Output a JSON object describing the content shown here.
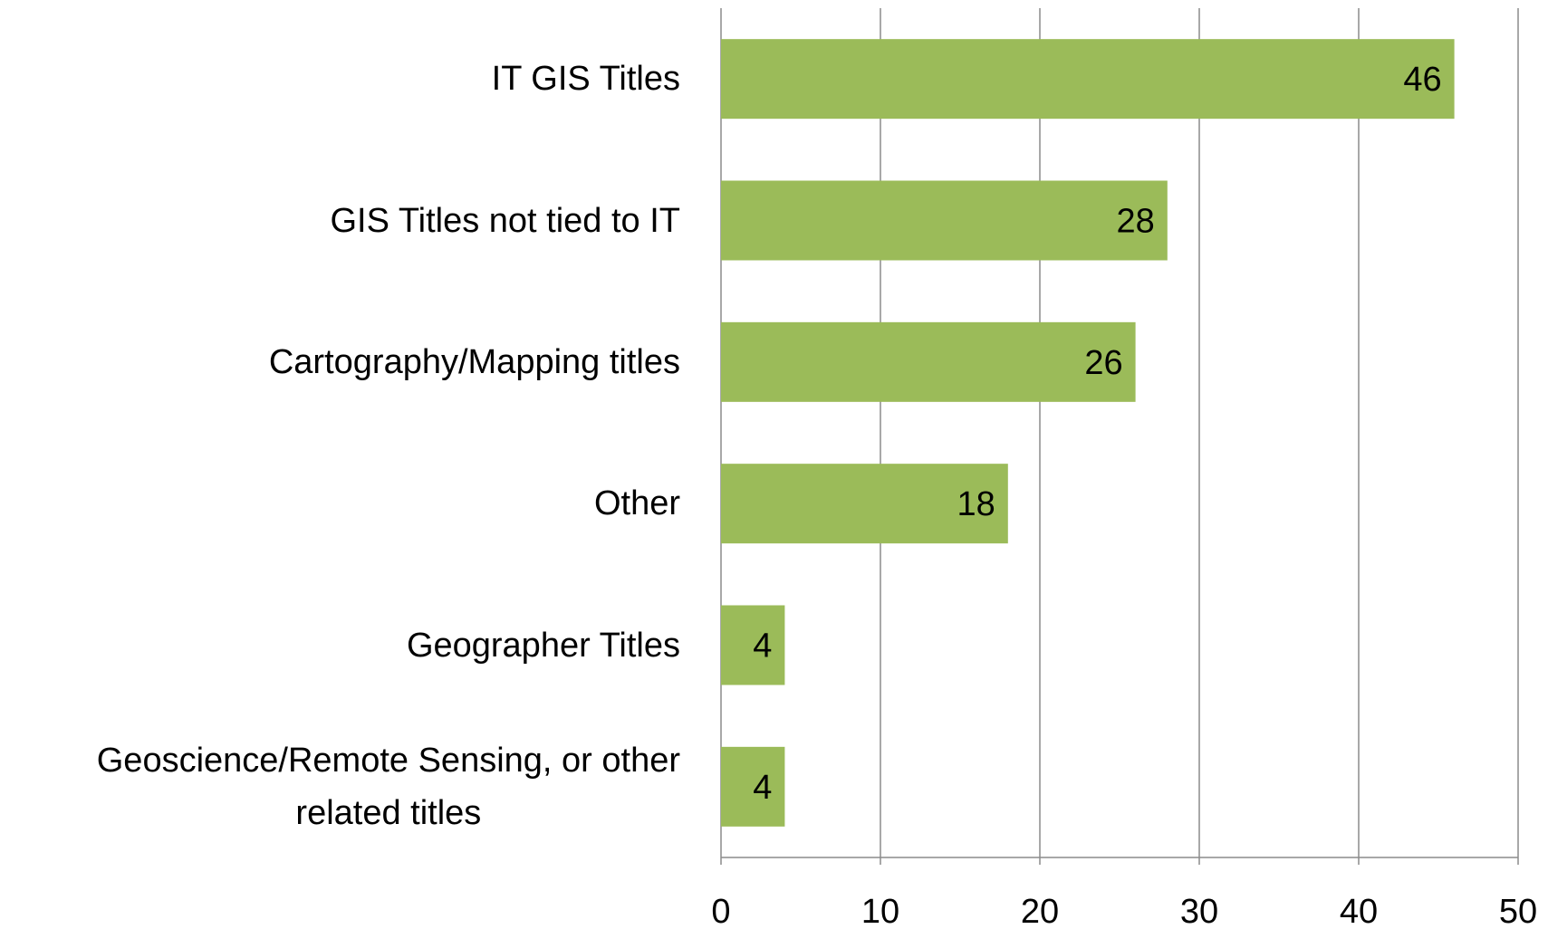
{
  "chart_data": {
    "type": "hbar",
    "categories": [
      "IT GIS Titles",
      "GIS Titles not tied to IT",
      "Cartography/Mapping titles",
      "Other",
      "Geographer Titles",
      "Geoscience/Remote Sensing, or other\nrelated titles"
    ],
    "values": [
      46,
      28,
      26,
      18,
      4,
      4
    ],
    "color": "#9bbb59",
    "xlim": [
      0,
      50
    ],
    "xticks": [
      0,
      10,
      20,
      30,
      40,
      50
    ],
    "grid": true
  }
}
